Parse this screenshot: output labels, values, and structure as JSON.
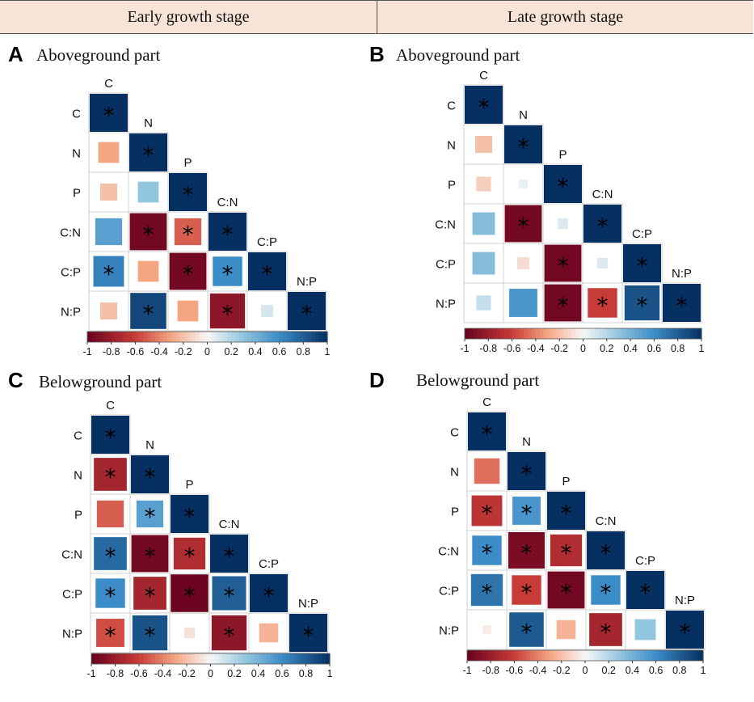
{
  "header": {
    "early_label": "Early growth stage",
    "late_label": "Late growth stage"
  },
  "colors": {
    "negative": "#67001f",
    "positive": "#053061",
    "neutral": "#f7f7f7",
    "grid": "#d0d0d0"
  },
  "chart_data": [
    {
      "type": "heatmap",
      "letter": "A",
      "title": "Aboveground part",
      "variables": [
        "C",
        "N",
        "P",
        "C:N",
        "C:P",
        "N:P"
      ],
      "matrix": [
        [
          1,
          null,
          null,
          null,
          null,
          null
        ],
        [
          -0.3,
          1,
          null,
          null,
          null,
          null
        ],
        [
          -0.2,
          0.3,
          1,
          null,
          null,
          null
        ],
        [
          0.5,
          -0.95,
          -0.5,
          1,
          null,
          null
        ],
        [
          0.65,
          -0.3,
          -0.95,
          0.6,
          1,
          null
        ],
        [
          -0.2,
          0.9,
          -0.3,
          -0.85,
          0.1,
          1
        ]
      ],
      "significant": [
        [
          true,
          null,
          null,
          null,
          null,
          null
        ],
        [
          false,
          true,
          null,
          null,
          null,
          null
        ],
        [
          false,
          false,
          true,
          null,
          null,
          null
        ],
        [
          false,
          true,
          true,
          true,
          null,
          null
        ],
        [
          true,
          false,
          true,
          true,
          true,
          null
        ],
        [
          false,
          true,
          false,
          true,
          false,
          true
        ]
      ],
      "colorbar": {
        "range": [
          -1,
          1
        ],
        "ticks": [
          "-1",
          "-0.8",
          "-0.6",
          "-0.4",
          "-0.2",
          "0",
          "0.2",
          "0.4",
          "0.6",
          "0.8",
          "1"
        ]
      }
    },
    {
      "type": "heatmap",
      "letter": "B",
      "title": "Aboveground part",
      "variables": [
        "C",
        "N",
        "P",
        "C:N",
        "C:P",
        "N:P"
      ],
      "matrix": [
        [
          1,
          null,
          null,
          null,
          null,
          null
        ],
        [
          -0.2,
          1,
          null,
          null,
          null,
          null
        ],
        [
          -0.15,
          0.05,
          1,
          null,
          null,
          null
        ],
        [
          0.35,
          -0.95,
          0.08,
          1,
          null,
          null
        ],
        [
          0.35,
          -0.1,
          -0.95,
          0.08,
          1,
          null
        ],
        [
          0.15,
          0.55,
          -0.95,
          -0.6,
          0.85,
          1
        ]
      ],
      "significant": [
        [
          true,
          null,
          null,
          null,
          null,
          null
        ],
        [
          false,
          true,
          null,
          null,
          null,
          null
        ],
        [
          false,
          false,
          true,
          null,
          null,
          null
        ],
        [
          false,
          true,
          false,
          true,
          null,
          null
        ],
        [
          false,
          false,
          true,
          false,
          true,
          null
        ],
        [
          false,
          false,
          true,
          true,
          true,
          true
        ]
      ],
      "colorbar": {
        "range": [
          -1,
          1
        ],
        "ticks": [
          "-1",
          "-0.8",
          "-0.6",
          "-0.4",
          "-0.2",
          "0",
          "0.2",
          "0.4",
          "0.6",
          "0.8",
          "1"
        ]
      }
    },
    {
      "type": "heatmap",
      "letter": "C",
      "title": "Belowground part",
      "variables": [
        "C",
        "N",
        "P",
        "C:N",
        "C:P",
        "N:P"
      ],
      "matrix": [
        [
          1,
          null,
          null,
          null,
          null,
          null
        ],
        [
          -0.75,
          1,
          null,
          null,
          null,
          null
        ],
        [
          -0.5,
          0.5,
          1,
          null,
          null,
          null
        ],
        [
          0.75,
          -0.95,
          -0.7,
          1,
          null,
          null
        ],
        [
          0.6,
          -0.75,
          -0.98,
          0.8,
          1,
          null
        ],
        [
          -0.55,
          0.85,
          -0.08,
          -0.85,
          -0.25,
          1
        ]
      ],
      "significant": [
        [
          true,
          null,
          null,
          null,
          null,
          null
        ],
        [
          true,
          true,
          null,
          null,
          null,
          null
        ],
        [
          false,
          true,
          true,
          null,
          null,
          null
        ],
        [
          true,
          true,
          true,
          true,
          null,
          null
        ],
        [
          true,
          true,
          true,
          true,
          true,
          null
        ],
        [
          true,
          true,
          false,
          true,
          false,
          true
        ]
      ],
      "colorbar": {
        "range": [
          -1,
          1
        ],
        "ticks": [
          "-1",
          "-0.8",
          "-0.6",
          "-0.4",
          "-0.2",
          "0",
          "0.2",
          "0.4",
          "0.6",
          "0.8",
          "1"
        ]
      }
    },
    {
      "type": "heatmap",
      "letter": "D",
      "title": "Belowground part",
      "variables": [
        "C",
        "N",
        "P",
        "C:N",
        "C:P",
        "N:P"
      ],
      "matrix": [
        [
          1,
          null,
          null,
          null,
          null,
          null
        ],
        [
          -0.45,
          1,
          null,
          null,
          null,
          null
        ],
        [
          -0.65,
          0.55,
          1,
          null,
          null,
          null
        ],
        [
          0.6,
          -0.92,
          -0.7,
          1,
          null,
          null
        ],
        [
          0.7,
          -0.6,
          -0.95,
          0.6,
          1,
          null
        ],
        [
          -0.05,
          0.82,
          -0.25,
          -0.75,
          0.3,
          1
        ]
      ],
      "significant": [
        [
          true,
          null,
          null,
          null,
          null,
          null
        ],
        [
          false,
          true,
          null,
          null,
          null,
          null
        ],
        [
          true,
          true,
          true,
          null,
          null,
          null
        ],
        [
          true,
          true,
          true,
          true,
          null,
          null
        ],
        [
          true,
          true,
          true,
          true,
          true,
          null
        ],
        [
          false,
          true,
          false,
          true,
          false,
          true
        ]
      ],
      "colorbar": {
        "range": [
          -1,
          1
        ],
        "ticks": [
          "-1",
          "-0.8",
          "-0.6",
          "-0.4",
          "-0.2",
          "0",
          "0.2",
          "0.4",
          "0.6",
          "0.8",
          "1"
        ]
      }
    }
  ]
}
